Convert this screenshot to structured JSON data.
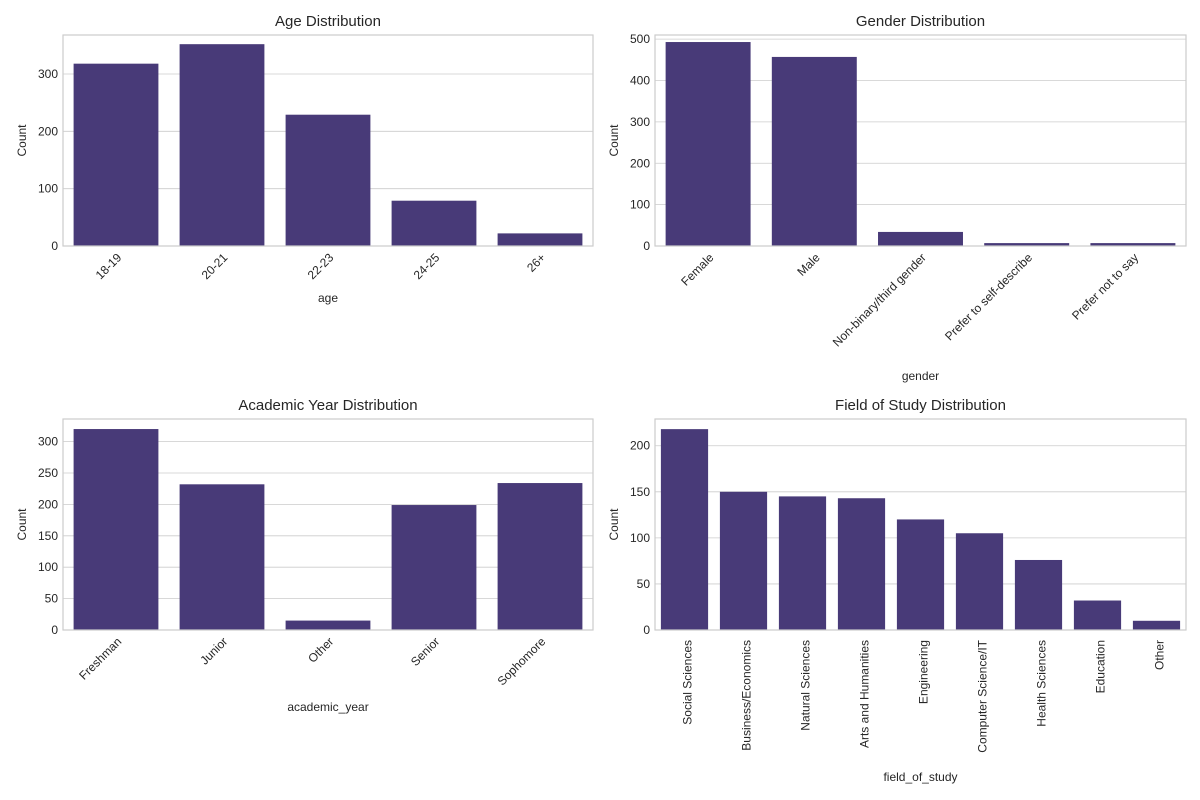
{
  "colors": {
    "bar": "#483a78",
    "grid": "#cccccc",
    "text": "#262626"
  },
  "chart_data": [
    {
      "type": "bar",
      "title": "Age Distribution",
      "xlabel": "age",
      "ylabel": "Count",
      "categories": [
        "18-19",
        "20-21",
        "22-23",
        "24-25",
        "26+"
      ],
      "values": [
        318,
        352,
        229,
        79,
        22
      ],
      "ylim": [
        0,
        368
      ],
      "yticks": [
        0,
        100,
        200,
        300
      ],
      "grid": true
    },
    {
      "type": "bar",
      "title": "Gender Distribution",
      "xlabel": "gender",
      "ylabel": "Count",
      "categories": [
        "Female",
        "Male",
        "Non-binary/third gender",
        "Prefer to self-describe",
        "Prefer not to say"
      ],
      "values": [
        493,
        457,
        34,
        7,
        7
      ],
      "ylim": [
        0,
        510
      ],
      "yticks": [
        0,
        100,
        200,
        300,
        400,
        500
      ],
      "grid": true
    },
    {
      "type": "bar",
      "title": "Academic Year Distribution",
      "xlabel": "academic_year",
      "ylabel": "Count",
      "categories": [
        "Freshman",
        "Junior",
        "Other",
        "Senior",
        "Sophomore"
      ],
      "values": [
        320,
        232,
        15,
        199,
        234
      ],
      "ylim": [
        0,
        336
      ],
      "yticks": [
        0,
        50,
        100,
        150,
        200,
        250,
        300
      ],
      "grid": true
    },
    {
      "type": "bar",
      "title": "Field of Study Distribution",
      "xlabel": "field_of_study",
      "ylabel": "Count",
      "categories": [
        "Social Sciences",
        "Business/Economics",
        "Natural Sciences",
        "Arts and Humanities",
        "Engineering",
        "Computer Science/IT",
        "Health Sciences",
        "Education",
        "Other"
      ],
      "values": [
        218,
        150,
        145,
        143,
        120,
        105,
        76,
        32,
        10
      ],
      "ylim": [
        0,
        229
      ],
      "yticks": [
        0,
        50,
        100,
        150,
        200
      ],
      "grid": true
    }
  ]
}
